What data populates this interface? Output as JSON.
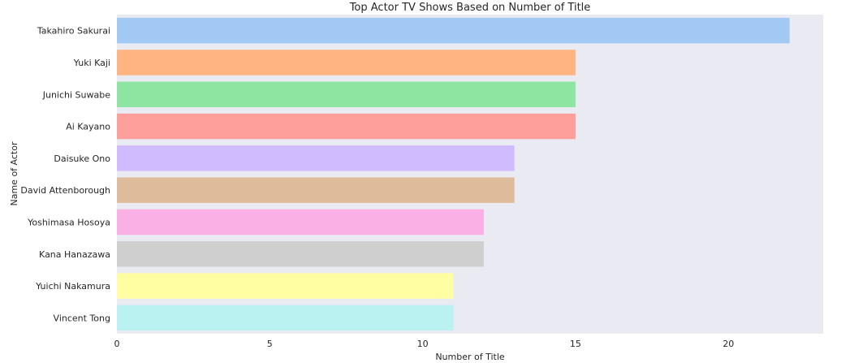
{
  "chart_data": {
    "type": "bar",
    "orientation": "horizontal",
    "title": "Top Actor TV Shows Based on Number of Title",
    "xlabel": "Number of Title",
    "ylabel": "Name of Actor",
    "categories": [
      "Takahiro Sakurai",
      "Yuki Kaji",
      "Junichi Suwabe",
      "Ai Kayano",
      "Daisuke Ono",
      "David Attenborough",
      "Yoshimasa Hosoya",
      "Kana Hanazawa",
      "Yuichi Nakamura",
      "Vincent Tong"
    ],
    "values": [
      22,
      15,
      15,
      15,
      13,
      13,
      12,
      12,
      11,
      11
    ],
    "colors": [
      "#a1c9f4",
      "#ffb482",
      "#8de5a1",
      "#ff9f9b",
      "#d0bbff",
      "#debb9b",
      "#fab0e4",
      "#cfcfcf",
      "#fffea3",
      "#b9f2f0"
    ],
    "xlim": [
      0,
      23.1
    ],
    "xticks": [
      0,
      5,
      10,
      15,
      20
    ],
    "grid": false,
    "background": "#eaeaf2"
  }
}
